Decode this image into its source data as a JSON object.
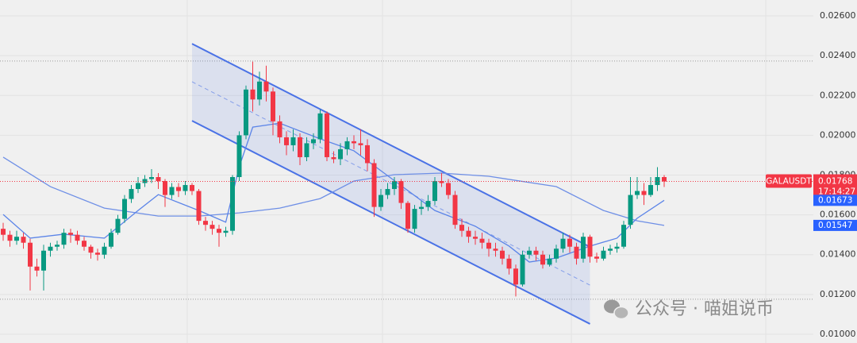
{
  "chart_data": {
    "type": "candlestick",
    "symbol": "GALAUSDT",
    "countdown": "17:14:27",
    "last_price": 0.01768,
    "up_color": "#089981",
    "down_color": "#f23645",
    "ylim": [
      0.00956,
      0.0268
    ],
    "yticks": [
      {
        "value": 0.026,
        "label": "0.02600"
      },
      {
        "value": 0.024,
        "label": "0.02400"
      },
      {
        "value": 0.022,
        "label": "0.02200"
      },
      {
        "value": 0.02,
        "label": "0.02000"
      },
      {
        "value": 0.018,
        "label": "0.01800"
      },
      {
        "value": 0.016,
        "label": "0.01600"
      },
      {
        "value": 0.014,
        "label": "0.01400"
      },
      {
        "value": 0.012,
        "label": "0.01200"
      },
      {
        "value": 0.01,
        "label": "0.01000"
      }
    ],
    "grid": true,
    "levels": [
      0.02373,
      0.01176
    ],
    "candles": [
      [
        0.0153,
        0.0156,
        0.0147,
        0.015
      ],
      [
        0.015,
        0.0152,
        0.0144,
        0.0147
      ],
      [
        0.0147,
        0.0152,
        0.0145,
        0.0149
      ],
      [
        0.0149,
        0.0151,
        0.0143,
        0.0146
      ],
      [
        0.0146,
        0.0148,
        0.0122,
        0.0134
      ],
      [
        0.0134,
        0.0138,
        0.0129,
        0.0132
      ],
      [
        0.0132,
        0.0145,
        0.0122,
        0.0142
      ],
      [
        0.0142,
        0.0146,
        0.0139,
        0.0144
      ],
      [
        0.0144,
        0.0147,
        0.0142,
        0.0145
      ],
      [
        0.0145,
        0.0153,
        0.0143,
        0.0151
      ],
      [
        0.0151,
        0.0153,
        0.0146,
        0.015
      ],
      [
        0.015,
        0.0152,
        0.0145,
        0.0147
      ],
      [
        0.0147,
        0.0149,
        0.0142,
        0.0144
      ],
      [
        0.0144,
        0.0145,
        0.0138,
        0.0141
      ],
      [
        0.0141,
        0.0143,
        0.0137,
        0.014
      ],
      [
        0.014,
        0.0146,
        0.0138,
        0.0144
      ],
      [
        0.0144,
        0.0153,
        0.0143,
        0.0151
      ],
      [
        0.0151,
        0.016,
        0.015,
        0.0158
      ],
      [
        0.0158,
        0.017,
        0.0156,
        0.0168
      ],
      [
        0.0168,
        0.0175,
        0.0166,
        0.0173
      ],
      [
        0.0173,
        0.0179,
        0.0171,
        0.0176
      ],
      [
        0.0176,
        0.018,
        0.0174,
        0.0178
      ],
      [
        0.0178,
        0.0183,
        0.0176,
        0.0179
      ],
      [
        0.0179,
        0.0181,
        0.0173,
        0.0177
      ],
      [
        0.0177,
        0.0178,
        0.0164,
        0.017
      ],
      [
        0.017,
        0.0176,
        0.0168,
        0.0174
      ],
      [
        0.0174,
        0.0176,
        0.0169,
        0.0172
      ],
      [
        0.0172,
        0.0177,
        0.017,
        0.0175
      ],
      [
        0.0175,
        0.0176,
        0.017,
        0.0172
      ],
      [
        0.0172,
        0.0173,
        0.0155,
        0.0157
      ],
      [
        0.0157,
        0.0159,
        0.0152,
        0.0155
      ],
      [
        0.0155,
        0.0157,
        0.015,
        0.0153
      ],
      [
        0.0153,
        0.0155,
        0.0144,
        0.0151
      ],
      [
        0.0151,
        0.0154,
        0.0149,
        0.0152
      ],
      [
        0.0152,
        0.018,
        0.015,
        0.0179
      ],
      [
        0.0179,
        0.0202,
        0.0177,
        0.02
      ],
      [
        0.02,
        0.0225,
        0.0198,
        0.0223
      ],
      [
        0.0223,
        0.0237,
        0.0212,
        0.0218
      ],
      [
        0.0218,
        0.0232,
        0.0215,
        0.0227
      ],
      [
        0.0227,
        0.0235,
        0.0217,
        0.0222
      ],
      [
        0.0222,
        0.0224,
        0.02,
        0.0207
      ],
      [
        0.0207,
        0.021,
        0.0196,
        0.0199
      ],
      [
        0.0199,
        0.0202,
        0.019,
        0.0195
      ],
      [
        0.0195,
        0.0203,
        0.0192,
        0.0199
      ],
      [
        0.0199,
        0.0201,
        0.0185,
        0.0189
      ],
      [
        0.0189,
        0.0199,
        0.0187,
        0.0196
      ],
      [
        0.0196,
        0.0201,
        0.0193,
        0.0198
      ],
      [
        0.0198,
        0.0213,
        0.0196,
        0.0211
      ],
      [
        0.0211,
        0.0212,
        0.0187,
        0.0189
      ],
      [
        0.0189,
        0.0192,
        0.0186,
        0.0188
      ],
      [
        0.0188,
        0.0196,
        0.0185,
        0.0193
      ],
      [
        0.0193,
        0.0199,
        0.019,
        0.0197
      ],
      [
        0.0197,
        0.02,
        0.0193,
        0.0196
      ],
      [
        0.0196,
        0.0203,
        0.019,
        0.0195
      ],
      [
        0.0195,
        0.0198,
        0.0182,
        0.0186
      ],
      [
        0.0186,
        0.0188,
        0.0159,
        0.0164
      ],
      [
        0.0164,
        0.0173,
        0.0162,
        0.017
      ],
      [
        0.017,
        0.0176,
        0.0168,
        0.0173
      ],
      [
        0.0173,
        0.0179,
        0.017,
        0.0177
      ],
      [
        0.0177,
        0.0178,
        0.0163,
        0.0166
      ],
      [
        0.0166,
        0.0167,
        0.0151,
        0.0153
      ],
      [
        0.0153,
        0.0165,
        0.0151,
        0.0163
      ],
      [
        0.0163,
        0.0167,
        0.016,
        0.0164
      ],
      [
        0.0164,
        0.017,
        0.0162,
        0.0167
      ],
      [
        0.0167,
        0.0179,
        0.0165,
        0.0177
      ],
      [
        0.0177,
        0.0181,
        0.0174,
        0.0176
      ],
      [
        0.0176,
        0.0178,
        0.0168,
        0.017
      ],
      [
        0.017,
        0.0172,
        0.0153,
        0.0155
      ],
      [
        0.0155,
        0.0158,
        0.0149,
        0.0152
      ],
      [
        0.0152,
        0.0154,
        0.0146,
        0.0149
      ],
      [
        0.0149,
        0.0152,
        0.0145,
        0.0148
      ],
      [
        0.0148,
        0.0151,
        0.0143,
        0.0146
      ],
      [
        0.0146,
        0.0148,
        0.0139,
        0.0143
      ],
      [
        0.0143,
        0.0146,
        0.0139,
        0.0142
      ],
      [
        0.0142,
        0.0144,
        0.0135,
        0.0138
      ],
      [
        0.0138,
        0.014,
        0.013,
        0.0133
      ],
      [
        0.0133,
        0.0135,
        0.0119,
        0.0125
      ],
      [
        0.0125,
        0.0142,
        0.0124,
        0.014
      ],
      [
        0.014,
        0.0144,
        0.0138,
        0.0142
      ],
      [
        0.0142,
        0.0144,
        0.0137,
        0.014
      ],
      [
        0.014,
        0.0142,
        0.0133,
        0.0135
      ],
      [
        0.0135,
        0.014,
        0.0134,
        0.0138
      ],
      [
        0.0138,
        0.0145,
        0.0136,
        0.0143
      ],
      [
        0.0143,
        0.0151,
        0.0141,
        0.0148
      ],
      [
        0.0148,
        0.015,
        0.0141,
        0.0144
      ],
      [
        0.0144,
        0.0146,
        0.0135,
        0.0138
      ],
      [
        0.0138,
        0.0151,
        0.0136,
        0.0149
      ],
      [
        0.0149,
        0.015,
        0.0136,
        0.0139
      ],
      [
        0.0139,
        0.0141,
        0.0136,
        0.0138
      ],
      [
        0.0138,
        0.0144,
        0.0137,
        0.0142
      ],
      [
        0.0142,
        0.0145,
        0.014,
        0.0143
      ],
      [
        0.0143,
        0.0146,
        0.0141,
        0.0144
      ],
      [
        0.0144,
        0.0157,
        0.0143,
        0.0155
      ],
      [
        0.0155,
        0.0179,
        0.0153,
        0.017
      ],
      [
        0.017,
        0.0179,
        0.0168,
        0.0172
      ],
      [
        0.0172,
        0.0176,
        0.0165,
        0.017
      ],
      [
        0.017,
        0.0179,
        0.0169,
        0.0175
      ],
      [
        0.0175,
        0.0184,
        0.0172,
        0.0179
      ],
      [
        0.0179,
        0.018,
        0.0174,
        0.01768
      ]
    ],
    "ma_fast": {
      "color": "#5b84e8",
      "x": [
        0,
        4,
        9,
        15,
        20,
        23,
        29,
        33,
        35,
        37,
        41,
        47,
        52,
        56,
        60,
        64,
        70,
        75,
        78,
        82,
        87,
        91,
        94,
        98
      ],
      "values": [
        0.01602,
        0.01483,
        0.01503,
        0.01483,
        0.01622,
        0.01702,
        0.01622,
        0.01563,
        0.01842,
        0.02041,
        0.02061,
        0.01982,
        0.01922,
        0.01822,
        0.01722,
        0.01622,
        0.01543,
        0.01443,
        0.01363,
        0.01383,
        0.01443,
        0.01483,
        0.01583,
        0.01673
      ]
    },
    "ma_slow": {
      "color": "#6e8fe6",
      "x": [
        0,
        7,
        15,
        23,
        29,
        35,
        41,
        47,
        52,
        58,
        65,
        72,
        82,
        89,
        94,
        98
      ],
      "values": [
        0.0189,
        0.01742,
        0.01634,
        0.01594,
        0.01594,
        0.0161,
        0.01634,
        0.01682,
        0.0177,
        0.01802,
        0.0181,
        0.01794,
        0.01742,
        0.01622,
        0.0157,
        0.01547
      ]
    },
    "channel": {
      "color": "#4a72e6",
      "x": [
        28,
        87
      ],
      "upper": [
        0.0246,
        0.01439
      ],
      "middle": [
        0.02269,
        0.01247
      ],
      "lower": [
        0.02073,
        0.01052
      ]
    },
    "watermark": "公众号 · 喵姐说币"
  }
}
